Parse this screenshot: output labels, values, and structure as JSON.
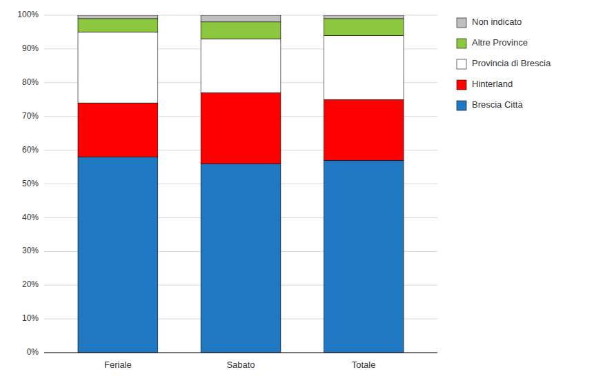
{
  "chart_data": {
    "type": "bar",
    "stacked": true,
    "categories": [
      "Feriale",
      "Sabato",
      "Totale"
    ],
    "series": [
      {
        "name": "Brescia Città",
        "color": "#1F78C1",
        "values": [
          58.0,
          56.0,
          57.0
        ]
      },
      {
        "name": "Hinterland",
        "color": "#FF0000",
        "values": [
          16.0,
          21.0,
          18.0
        ]
      },
      {
        "name": "Provincia di Brescia",
        "color": "#FFFFFF",
        "values": [
          21.0,
          16.0,
          19.0
        ]
      },
      {
        "name": "Altre Province",
        "color": "#8DC63F",
        "values": [
          4.0,
          5.0,
          5.0
        ]
      },
      {
        "name": "Non indicato",
        "color": "#BFBFBF",
        "values": [
          1.0,
          2.0,
          1.0
        ]
      }
    ],
    "ylim": [
      0,
      100
    ],
    "yticks": [
      {
        "value": 0,
        "label": "0%"
      },
      {
        "value": 10,
        "label": "10%"
      },
      {
        "value": 20,
        "label": "20%"
      },
      {
        "value": 30,
        "label": "30%"
      },
      {
        "value": 40,
        "label": "40%"
      },
      {
        "value": 50,
        "label": "50%"
      },
      {
        "value": 60,
        "label": "60%"
      },
      {
        "value": 70,
        "label": "70%"
      },
      {
        "value": 80,
        "label": "80%"
      },
      {
        "value": 90,
        "label": "90%"
      },
      {
        "value": 100,
        "label": "100%"
      }
    ],
    "grid": true,
    "legend": "right"
  }
}
